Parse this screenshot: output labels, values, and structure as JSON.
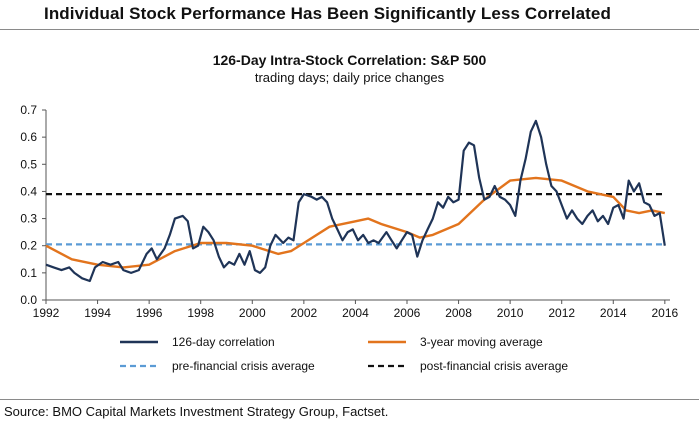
{
  "headline": "Individual Stock Performance Has Been Significantly Less Correlated",
  "source": "Source: BMO Capital Markets Investment Strategy Group, Factset.",
  "colors": {
    "correlation": "#1f3457",
    "moving_average": "#e2741d",
    "pre_crisis": "#5b9bd5",
    "post_crisis": "#111111"
  },
  "chart_data": {
    "type": "line",
    "title": "126-Day Intra-Stock Correlation: S&P 500",
    "subtitle": "trading days;  daily price changes",
    "xlim": [
      1992,
      2016.2
    ],
    "ylim": [
      0,
      0.7
    ],
    "x_ticks": [
      "1992",
      "1994",
      "1996",
      "1998",
      "2000",
      "2002",
      "2004",
      "2006",
      "2008",
      "2010",
      "2012",
      "2014",
      "2016"
    ],
    "y_ticks": [
      "0.0",
      "0.1",
      "0.2",
      "0.3",
      "0.4",
      "0.5",
      "0.6",
      "0.7"
    ],
    "grid": false,
    "legend_position": "bottom",
    "series": [
      {
        "name": "126-day correlation",
        "style": "solid",
        "color_key": "correlation",
        "points": [
          [
            1992.0,
            0.13
          ],
          [
            1992.3,
            0.12
          ],
          [
            1992.6,
            0.11
          ],
          [
            1992.9,
            0.12
          ],
          [
            1993.1,
            0.1
          ],
          [
            1993.4,
            0.08
          ],
          [
            1993.7,
            0.07
          ],
          [
            1993.9,
            0.12
          ],
          [
            1994.2,
            0.14
          ],
          [
            1994.5,
            0.13
          ],
          [
            1994.8,
            0.14
          ],
          [
            1995.0,
            0.11
          ],
          [
            1995.3,
            0.1
          ],
          [
            1995.6,
            0.11
          ],
          [
            1995.9,
            0.17
          ],
          [
            1996.1,
            0.19
          ],
          [
            1996.3,
            0.15
          ],
          [
            1996.6,
            0.19
          ],
          [
            1996.8,
            0.24
          ],
          [
            1997.0,
            0.3
          ],
          [
            1997.3,
            0.31
          ],
          [
            1997.5,
            0.29
          ],
          [
            1997.7,
            0.19
          ],
          [
            1997.9,
            0.2
          ],
          [
            1998.1,
            0.27
          ],
          [
            1998.3,
            0.25
          ],
          [
            1998.5,
            0.22
          ],
          [
            1998.7,
            0.16
          ],
          [
            1998.9,
            0.12
          ],
          [
            1999.1,
            0.14
          ],
          [
            1999.3,
            0.13
          ],
          [
            1999.5,
            0.17
          ],
          [
            1999.7,
            0.13
          ],
          [
            1999.9,
            0.18
          ],
          [
            2000.1,
            0.11
          ],
          [
            2000.3,
            0.1
          ],
          [
            2000.5,
            0.12
          ],
          [
            2000.7,
            0.2
          ],
          [
            2000.9,
            0.24
          ],
          [
            2001.2,
            0.21
          ],
          [
            2001.4,
            0.23
          ],
          [
            2001.6,
            0.22
          ],
          [
            2001.8,
            0.36
          ],
          [
            2002.0,
            0.39
          ],
          [
            2002.3,
            0.38
          ],
          [
            2002.5,
            0.37
          ],
          [
            2002.7,
            0.38
          ],
          [
            2002.9,
            0.36
          ],
          [
            2003.1,
            0.3
          ],
          [
            2003.3,
            0.26
          ],
          [
            2003.5,
            0.22
          ],
          [
            2003.7,
            0.25
          ],
          [
            2003.9,
            0.26
          ],
          [
            2004.1,
            0.22
          ],
          [
            2004.3,
            0.24
          ],
          [
            2004.5,
            0.21
          ],
          [
            2004.7,
            0.22
          ],
          [
            2004.9,
            0.21
          ],
          [
            2005.2,
            0.25
          ],
          [
            2005.4,
            0.22
          ],
          [
            2005.6,
            0.19
          ],
          [
            2005.8,
            0.22
          ],
          [
            2006.0,
            0.25
          ],
          [
            2006.2,
            0.24
          ],
          [
            2006.4,
            0.16
          ],
          [
            2006.6,
            0.22
          ],
          [
            2006.8,
            0.26
          ],
          [
            2007.0,
            0.3
          ],
          [
            2007.2,
            0.36
          ],
          [
            2007.4,
            0.34
          ],
          [
            2007.6,
            0.38
          ],
          [
            2007.8,
            0.36
          ],
          [
            2008.0,
            0.37
          ],
          [
            2008.2,
            0.55
          ],
          [
            2008.4,
            0.58
          ],
          [
            2008.6,
            0.57
          ],
          [
            2008.8,
            0.45
          ],
          [
            2009.0,
            0.37
          ],
          [
            2009.2,
            0.38
          ],
          [
            2009.4,
            0.42
          ],
          [
            2009.6,
            0.38
          ],
          [
            2009.8,
            0.37
          ],
          [
            2010.0,
            0.35
          ],
          [
            2010.2,
            0.31
          ],
          [
            2010.4,
            0.44
          ],
          [
            2010.6,
            0.52
          ],
          [
            2010.8,
            0.62
          ],
          [
            2011.0,
            0.66
          ],
          [
            2011.2,
            0.6
          ],
          [
            2011.4,
            0.5
          ],
          [
            2011.6,
            0.42
          ],
          [
            2011.8,
            0.4
          ],
          [
            2012.0,
            0.35
          ],
          [
            2012.2,
            0.3
          ],
          [
            2012.4,
            0.33
          ],
          [
            2012.6,
            0.3
          ],
          [
            2012.8,
            0.28
          ],
          [
            2013.0,
            0.31
          ],
          [
            2013.2,
            0.33
          ],
          [
            2013.4,
            0.29
          ],
          [
            2013.6,
            0.31
          ],
          [
            2013.8,
            0.28
          ],
          [
            2014.0,
            0.34
          ],
          [
            2014.2,
            0.35
          ],
          [
            2014.4,
            0.3
          ],
          [
            2014.6,
            0.44
          ],
          [
            2014.8,
            0.4
          ],
          [
            2015.0,
            0.43
          ],
          [
            2015.2,
            0.36
          ],
          [
            2015.4,
            0.35
          ],
          [
            2015.6,
            0.31
          ],
          [
            2015.8,
            0.32
          ],
          [
            2016.0,
            0.2
          ]
        ]
      },
      {
        "name": "3-year moving average",
        "style": "solid",
        "color_key": "moving_average",
        "points": [
          [
            1992.0,
            0.2
          ],
          [
            1993.0,
            0.15
          ],
          [
            1994.0,
            0.13
          ],
          [
            1995.0,
            0.12
          ],
          [
            1996.0,
            0.13
          ],
          [
            1997.0,
            0.18
          ],
          [
            1998.0,
            0.21
          ],
          [
            1999.0,
            0.21
          ],
          [
            2000.0,
            0.2
          ],
          [
            2001.0,
            0.17
          ],
          [
            2001.5,
            0.18
          ],
          [
            2002.0,
            0.21
          ],
          [
            2003.0,
            0.27
          ],
          [
            2004.0,
            0.29
          ],
          [
            2004.5,
            0.3
          ],
          [
            2005.0,
            0.28
          ],
          [
            2006.0,
            0.25
          ],
          [
            2006.5,
            0.23
          ],
          [
            2007.0,
            0.24
          ],
          [
            2008.0,
            0.28
          ],
          [
            2009.0,
            0.37
          ],
          [
            2010.0,
            0.44
          ],
          [
            2011.0,
            0.45
          ],
          [
            2012.0,
            0.44
          ],
          [
            2013.0,
            0.4
          ],
          [
            2014.0,
            0.38
          ],
          [
            2014.5,
            0.33
          ],
          [
            2015.0,
            0.32
          ],
          [
            2015.5,
            0.33
          ],
          [
            2016.0,
            0.32
          ]
        ]
      },
      {
        "name": "pre-financial crisis average",
        "style": "dashed",
        "color_key": "pre_crisis",
        "points": [
          [
            1992.0,
            0.205
          ],
          [
            2016.0,
            0.205
          ]
        ]
      },
      {
        "name": "post-financial crisis average",
        "style": "dashed",
        "color_key": "post_crisis",
        "points": [
          [
            1992.0,
            0.39
          ],
          [
            2016.0,
            0.39
          ]
        ]
      }
    ]
  }
}
